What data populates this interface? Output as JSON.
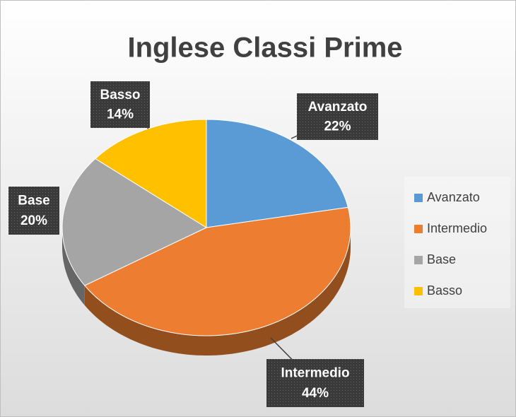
{
  "chart_data": {
    "type": "pie",
    "title": "Inglese Classi Prime",
    "categories": [
      "Avanzato",
      "Intermedio",
      "Base",
      "Basso"
    ],
    "values": [
      22,
      44,
      20,
      14
    ],
    "value_labels": [
      "22%",
      "44%",
      "20%",
      "14%"
    ],
    "colors": [
      "#5b9bd5",
      "#ed7d31",
      "#a5a5a5",
      "#ffc000"
    ],
    "legend": "right"
  }
}
